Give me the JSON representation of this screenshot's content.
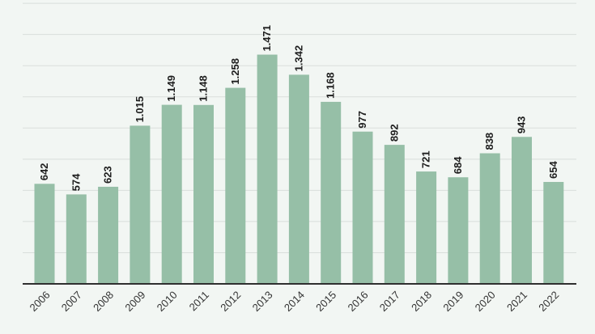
{
  "chart_data": {
    "type": "bar",
    "title": "",
    "xlabel": "",
    "ylabel": "",
    "categories": [
      "2006",
      "2007",
      "2008",
      "2009",
      "2010",
      "2011",
      "2012",
      "2013",
      "2014",
      "2015",
      "2016",
      "2017",
      "2018",
      "2019",
      "2020",
      "2021",
      "2022"
    ],
    "values": [
      642,
      574,
      623,
      1015,
      1149,
      1148,
      1258,
      1471,
      1342,
      1168,
      977,
      892,
      721,
      684,
      838,
      943,
      654
    ],
    "value_labels": [
      "642",
      "574",
      "623",
      "1.015",
      "1.149",
      "1.148",
      "1.258",
      "1.471",
      "1.342",
      "1.168",
      "977",
      "892",
      "721",
      "684",
      "838",
      "943",
      "654"
    ],
    "ylim": [
      0,
      1800
    ],
    "grid": true,
    "legend": "none",
    "colors": {
      "bar": "#96bfa7",
      "background": "#f2f6f3",
      "grid": "#d9dedb",
      "axis": "#2f2f2f"
    }
  }
}
